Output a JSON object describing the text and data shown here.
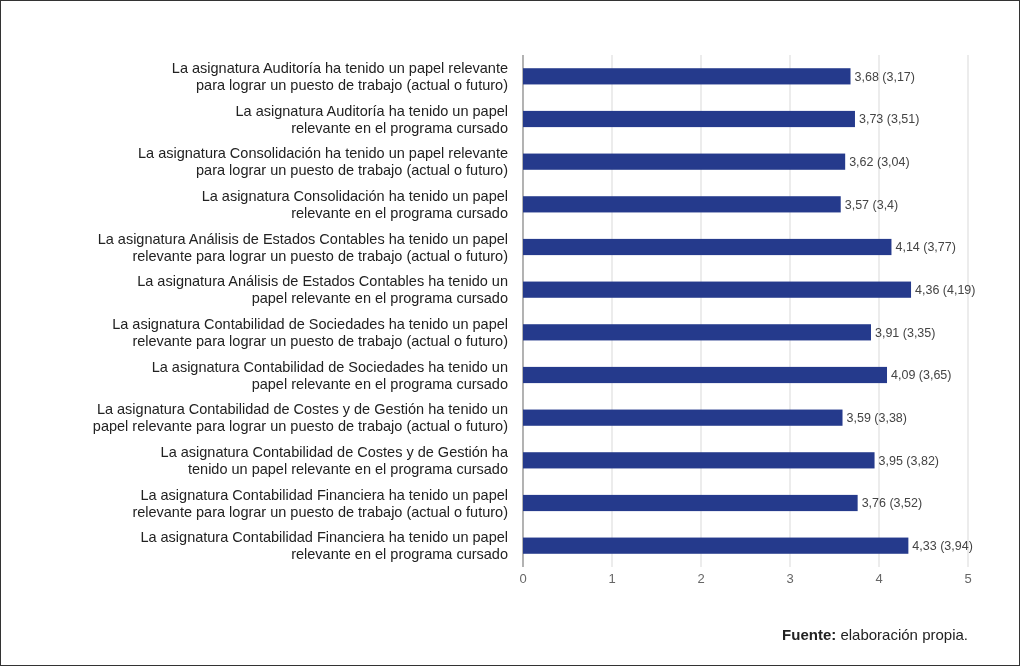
{
  "chart_data": {
    "type": "bar",
    "orientation": "horizontal",
    "categories": [
      "La asignatura Auditoría ha tenido un papel relevante\npara lograr un puesto de trabajo (actual o futuro)",
      "La asignatura Auditoría ha tenido un papel\nrelevante en el programa cursado",
      "La asignatura Consolidación ha tenido un papel relevante\npara lograr un puesto de trabajo (actual o futuro)",
      "La asignatura Consolidación ha tenido un papel\nrelevante en el programa cursado",
      "La asignatura Análisis de Estados Contables ha tenido un papel\nrelevante para lograr un puesto de trabajo (actual o futuro)",
      "La asignatura Análisis de Estados Contables ha tenido un\npapel relevante en el programa cursado",
      "La asignatura Contabilidad de Sociedades ha tenido un papel\nrelevante para lograr un puesto de trabajo (actual o futuro)",
      "La asignatura Contabilidad de Sociedades ha tenido un\npapel relevante en el programa cursado",
      "La asignatura Contabilidad de Costes y de Gestión ha tenido un\npapel relevante para lograr un puesto de trabajo (actual o futuro)",
      "La asignatura Contabilidad de Costes y de Gestión ha\ntenido un papel relevante en el programa cursado",
      "La asignatura Contabilidad Financiera ha tenido un papel\nrelevante para lograr un puesto de trabajo (actual o futuro)",
      "La asignatura Contabilidad Financiera ha tenido un papel\nrelevante en el programa cursado"
    ],
    "values": [
      3.68,
      3.73,
      3.62,
      3.57,
      4.14,
      4.36,
      3.91,
      4.09,
      3.59,
      3.95,
      3.76,
      4.33
    ],
    "value_labels": [
      "3,68 (3,17)",
      "3,73 (3,51)",
      "3,62 (3,04)",
      "3,57 (3,4)",
      "4,14 (3,77)",
      "4,36 (4,19)",
      "3,91 (3,35)",
      "4,09 (3,65)",
      "3,59 (3,38)",
      "3,95 (3,82)",
      "3,76 (3,52)",
      "4,33 (3,94)"
    ],
    "color": "#253a8c",
    "xlim": [
      0,
      5
    ],
    "xticks": [
      0,
      1,
      2,
      3,
      4,
      5
    ],
    "grid": "x",
    "annotations": [
      "Fuente: elaboración propia."
    ]
  }
}
